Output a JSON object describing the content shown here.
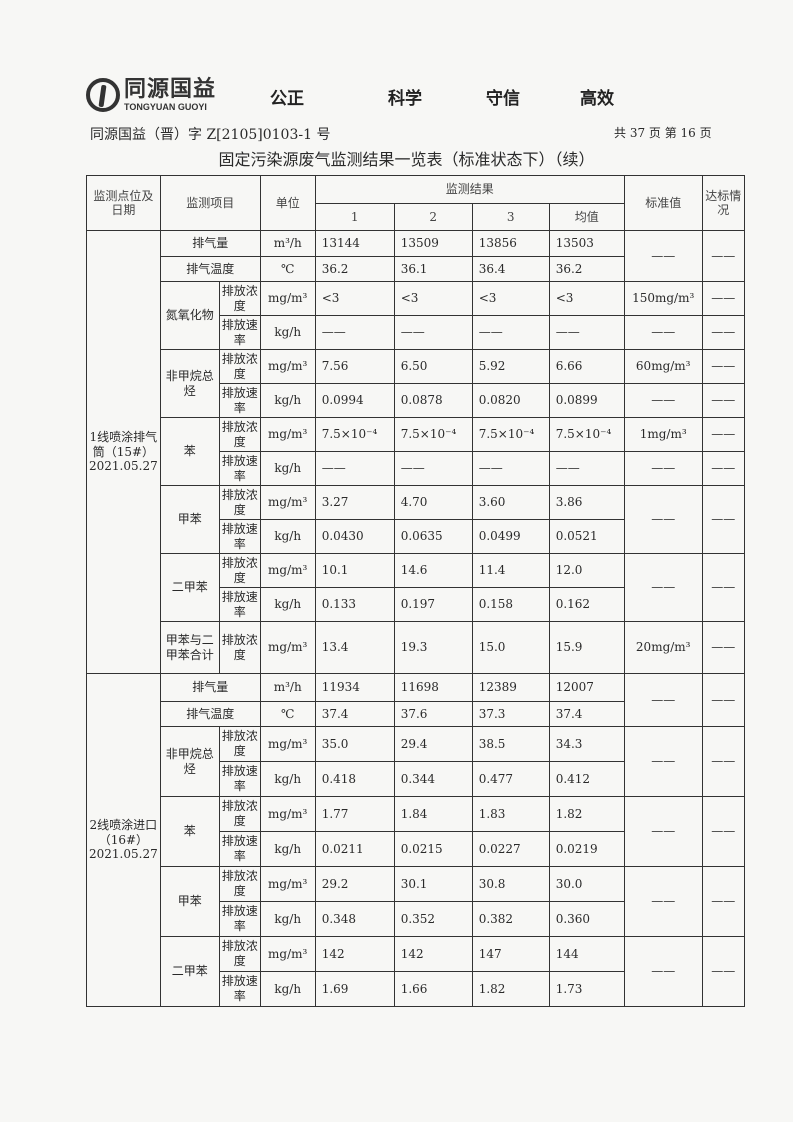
{
  "header": {
    "logo_cn": "同源国益",
    "logo_en": "TONGYUAN GUOYI",
    "slogan": [
      "公正",
      "科学",
      "守信",
      "高效"
    ],
    "doc_number": "同源国益（晋）字 Z[2105]0103-1 号",
    "page_info": "共 37 页   第 16 页",
    "title": "固定污染源废气监测结果一览表（标准状态下）（续）"
  },
  "table": {
    "headers": {
      "site": "监测点位及日期",
      "item": "监测项目",
      "unit": "单位",
      "results": "监测结果",
      "cols": [
        "1",
        "2",
        "3",
        "均值"
      ],
      "standard": "标准值",
      "compliance": "达标情况"
    },
    "sections": [
      {
        "site": "1线喷涂排气筒（15#）2021.05.27",
        "rows": [
          {
            "item": "排气量",
            "sub": "",
            "unit": "m³/h",
            "values": [
              "13144",
              "13509",
              "13856",
              "13503"
            ]
          },
          {
            "item": "排气温度",
            "sub": "",
            "unit": "℃",
            "values": [
              "36.2",
              "36.1",
              "36.4",
              "36.2"
            ]
          },
          {
            "item": "氮氧化物",
            "sub": "排放浓度",
            "unit": "mg/m³",
            "values": [
              "<3",
              "<3",
              "<3",
              "<3"
            ]
          },
          {
            "item": "氮氧化物",
            "sub": "排放速率",
            "unit": "kg/h",
            "values": [
              "——",
              "——",
              "——",
              "——"
            ]
          },
          {
            "item": "非甲烷总烃",
            "sub": "排放浓度",
            "unit": "mg/m³",
            "values": [
              "7.56",
              "6.50",
              "5.92",
              "6.66"
            ]
          },
          {
            "item": "非甲烷总烃",
            "sub": "排放速率",
            "unit": "kg/h",
            "values": [
              "0.0994",
              "0.0878",
              "0.0820",
              "0.0899"
            ]
          },
          {
            "item": "苯",
            "sub": "排放浓度",
            "unit": "mg/m³",
            "values": [
              "7.5×10⁻⁴",
              "7.5×10⁻⁴",
              "7.5×10⁻⁴",
              "7.5×10⁻⁴"
            ]
          },
          {
            "item": "苯",
            "sub": "排放速率",
            "unit": "kg/h",
            "values": [
              "——",
              "——",
              "——",
              "——"
            ]
          },
          {
            "item": "甲苯",
            "sub": "排放浓度",
            "unit": "mg/m³",
            "values": [
              "3.27",
              "4.70",
              "3.60",
              "3.86"
            ]
          },
          {
            "item": "甲苯",
            "sub": "排放速率",
            "unit": "kg/h",
            "values": [
              "0.0430",
              "0.0635",
              "0.0499",
              "0.0521"
            ]
          },
          {
            "item": "二甲苯",
            "sub": "排放浓度",
            "unit": "mg/m³",
            "values": [
              "10.1",
              "14.6",
              "11.4",
              "12.0"
            ]
          },
          {
            "item": "二甲苯",
            "sub": "排放速率",
            "unit": "kg/h",
            "values": [
              "0.133",
              "0.197",
              "0.158",
              "0.162"
            ]
          },
          {
            "item": "甲苯与二甲苯合计",
            "sub": "排放浓度",
            "unit": "mg/m³",
            "values": [
              "13.4",
              "19.3",
              "15.0",
              "15.9"
            ]
          }
        ],
        "standards": [
          {
            "value": "——",
            "ok": "——"
          },
          {
            "value": "150mg/m³",
            "ok": "——"
          },
          {
            "value": "——",
            "ok": "——"
          },
          {
            "value": "60mg/m³",
            "ok": "——"
          },
          {
            "value": "——",
            "ok": "——"
          },
          {
            "value": "1mg/m³",
            "ok": "——"
          },
          {
            "value": "——",
            "ok": "——"
          },
          {
            "value": "——",
            "ok": "——"
          },
          {
            "value": "——",
            "ok": "——"
          },
          {
            "value": "20mg/m³",
            "ok": "——"
          }
        ]
      },
      {
        "site": "2线喷涂进口（16#）2021.05.27",
        "rows": [
          {
            "item": "排气量",
            "sub": "",
            "unit": "m³/h",
            "values": [
              "11934",
              "11698",
              "12389",
              "12007"
            ]
          },
          {
            "item": "排气温度",
            "sub": "",
            "unit": "℃",
            "values": [
              "37.4",
              "37.6",
              "37.3",
              "37.4"
            ]
          },
          {
            "item": "非甲烷总烃",
            "sub": "排放浓度",
            "unit": "mg/m³",
            "values": [
              "35.0",
              "29.4",
              "38.5",
              "34.3"
            ]
          },
          {
            "item": "非甲烷总烃",
            "sub": "排放速率",
            "unit": "kg/h",
            "values": [
              "0.418",
              "0.344",
              "0.477",
              "0.412"
            ]
          },
          {
            "item": "苯",
            "sub": "排放浓度",
            "unit": "mg/m³",
            "values": [
              "1.77",
              "1.84",
              "1.83",
              "1.82"
            ]
          },
          {
            "item": "苯",
            "sub": "排放速率",
            "unit": "kg/h",
            "values": [
              "0.0211",
              "0.0215",
              "0.0227",
              "0.0219"
            ]
          },
          {
            "item": "甲苯",
            "sub": "排放浓度",
            "unit": "mg/m³",
            "values": [
              "29.2",
              "30.1",
              "30.8",
              "30.0"
            ]
          },
          {
            "item": "甲苯",
            "sub": "排放速率",
            "unit": "kg/h",
            "values": [
              "0.348",
              "0.352",
              "0.382",
              "0.360"
            ]
          },
          {
            "item": "二甲苯",
            "sub": "排放浓度",
            "unit": "mg/m³",
            "values": [
              "142",
              "142",
              "147",
              "144"
            ]
          },
          {
            "item": "二甲苯",
            "sub": "排放速率",
            "unit": "kg/h",
            "values": [
              "1.69",
              "1.66",
              "1.82",
              "1.73"
            ]
          }
        ],
        "standards": [
          {
            "value": "——",
            "ok": "——"
          },
          {
            "value": "——",
            "ok": "——"
          },
          {
            "value": "——",
            "ok": "——"
          },
          {
            "value": "——",
            "ok": "——"
          },
          {
            "value": "——",
            "ok": "——"
          }
        ]
      }
    ]
  }
}
